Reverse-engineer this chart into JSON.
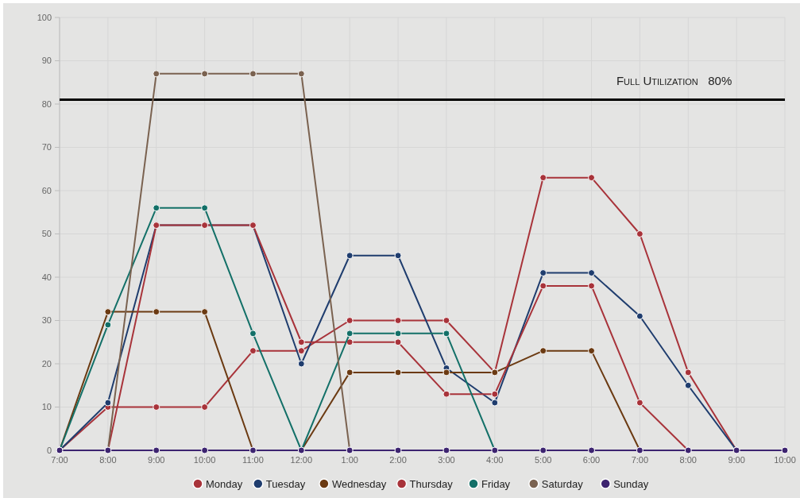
{
  "chart_data": {
    "type": "line",
    "categories": [
      "7:00",
      "8:00",
      "9:00",
      "10:00",
      "11:00",
      "12:00",
      "1:00",
      "2:00",
      "3:00",
      "4:00",
      "5:00",
      "6:00",
      "7:00",
      "8:00",
      "9:00",
      "10:00"
    ],
    "series": [
      {
        "name": "Monday",
        "color": "#a8333a",
        "values": [
          0,
          10,
          10,
          10,
          23,
          23,
          30,
          30,
          30,
          18,
          63,
          63,
          50,
          18,
          0,
          0
        ]
      },
      {
        "name": "Tuesday",
        "color": "#1f3d6e",
        "values": [
          0,
          11,
          52,
          52,
          52,
          20,
          45,
          45,
          19,
          11,
          41,
          41,
          31,
          15,
          0,
          0
        ]
      },
      {
        "name": "Wednesday",
        "color": "#6b3a12",
        "values": [
          0,
          32,
          32,
          32,
          0,
          0,
          18,
          18,
          18,
          18,
          23,
          23,
          0,
          0,
          null,
          null
        ]
      },
      {
        "name": "Thursday",
        "color": "#a8333a",
        "values": [
          0,
          0,
          52,
          52,
          52,
          25,
          25,
          25,
          13,
          13,
          38,
          38,
          11,
          0,
          0,
          0
        ]
      },
      {
        "name": "Friday",
        "color": "#137068",
        "values": [
          0,
          29,
          56,
          56,
          27,
          0,
          27,
          27,
          27,
          0,
          0,
          null,
          null,
          null,
          null,
          null
        ]
      },
      {
        "name": "Saturday",
        "color": "#7a6250",
        "values": [
          0,
          0,
          87,
          87,
          87,
          87,
          0,
          null,
          null,
          null,
          null,
          null,
          null,
          null,
          null,
          null
        ]
      },
      {
        "name": "Sunday",
        "color": "#3d2470",
        "values": [
          0,
          0,
          0,
          0,
          0,
          0,
          0,
          0,
          0,
          0,
          0,
          0,
          0,
          0,
          0,
          0
        ]
      }
    ],
    "ylim": [
      0,
      100
    ],
    "yticks": [
      0,
      10,
      20,
      30,
      40,
      50,
      60,
      70,
      80,
      90,
      100
    ],
    "grid": true,
    "legend": "bottom",
    "marker": "circle",
    "ref_lines": [
      {
        "axis": "y",
        "value": 81,
        "label": "Full Utilization   80%",
        "color": "#000000"
      }
    ]
  }
}
